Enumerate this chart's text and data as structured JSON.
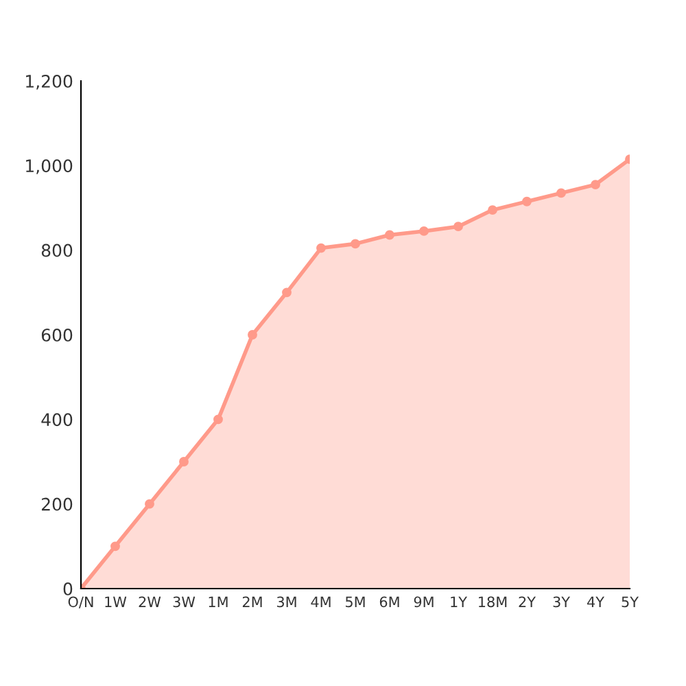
{
  "chart_data": {
    "type": "area",
    "categories": [
      "O/N",
      "1W",
      "2W",
      "3W",
      "1M",
      "2M",
      "3M",
      "4M",
      "5M",
      "6M",
      "9M",
      "1Y",
      "18M",
      "2Y",
      "3Y",
      "4Y",
      "5Y"
    ],
    "series": [
      {
        "color": "#ff9a8a",
        "values": [
          0,
          100,
          200,
          300,
          400,
          600,
          700,
          805,
          815,
          836,
          845,
          856,
          895,
          915,
          935,
          955,
          1015
        ]
      }
    ],
    "ylim": [
      0,
      1200
    ],
    "yticks": [
      0,
      200,
      400,
      600,
      800,
      {
        "value": 1000,
        "label": "1,000"
      },
      {
        "value": 1200,
        "label": "1,200"
      }
    ],
    "marker": "circle",
    "line_style": "solid",
    "grid": false,
    "legend": false
  }
}
